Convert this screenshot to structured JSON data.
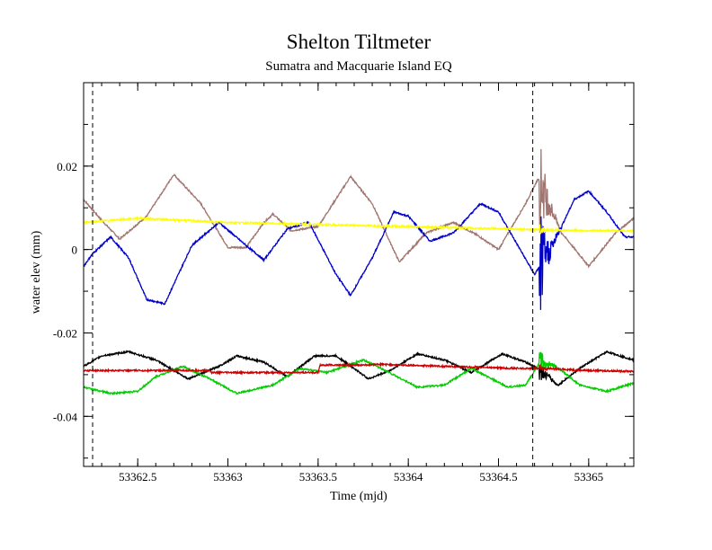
{
  "chart_data": {
    "type": "line",
    "title": "Shelton Tiltmeter",
    "subtitle": "Sumatra and  Macquarie Island EQ",
    "xlabel": "Time (mjd)",
    "ylabel": "water elev (mm)",
    "xlim": [
      53362.2,
      53365.25
    ],
    "ylim": [
      -0.052,
      0.04
    ],
    "xticks": [
      53362.5,
      53363,
      53363.5,
      53364,
      53364.5,
      53365
    ],
    "xtick_labels": [
      "53362.5",
      "53363",
      "53363.5",
      "53364",
      "53364.5",
      "53365"
    ],
    "yticks": [
      -0.04,
      -0.02,
      0,
      0.02
    ],
    "ytick_labels": [
      "-0.04",
      "-0.02",
      "0",
      "0.02"
    ],
    "grid": false,
    "vlines": [
      53362.25,
      53364.69
    ],
    "event_time": 53364.73,
    "series": [
      {
        "color": "#a1756f",
        "values": [
          [
            53362.2,
            0.012
          ],
          [
            53362.3,
            0.007
          ],
          [
            53362.4,
            0.0025
          ],
          [
            53362.55,
            0.008
          ],
          [
            53362.7,
            0.018
          ],
          [
            53362.85,
            0.011
          ],
          [
            53363.0,
            0.0005
          ],
          [
            53363.1,
            0.0005
          ],
          [
            53363.2,
            0.0065
          ],
          [
            53363.25,
            0.0085
          ],
          [
            53363.35,
            0.0045
          ],
          [
            53363.5,
            0.0055
          ],
          [
            53363.68,
            0.0175
          ],
          [
            53363.8,
            0.011
          ],
          [
            53363.95,
            -0.003
          ],
          [
            53364.1,
            0.004
          ],
          [
            53364.25,
            0.0065
          ],
          [
            53364.38,
            0.0035
          ],
          [
            53364.5,
            0.0
          ],
          [
            53364.65,
            0.011
          ],
          [
            53364.72,
            0.017
          ],
          [
            53364.85,
            0.004
          ],
          [
            53365.0,
            -0.004
          ],
          [
            53365.15,
            0.004
          ],
          [
            53365.25,
            0.0075
          ]
        ]
      },
      {
        "color": "#0000cc",
        "values": [
          [
            53362.2,
            -0.004
          ],
          [
            53362.25,
            -0.001
          ],
          [
            53362.35,
            0.003
          ],
          [
            53362.45,
            -0.002
          ],
          [
            53362.55,
            -0.012
          ],
          [
            53362.65,
            -0.013
          ],
          [
            53362.8,
            0.001
          ],
          [
            53362.95,
            0.0065
          ],
          [
            53363.1,
            0.001
          ],
          [
            53363.2,
            -0.0025
          ],
          [
            53363.33,
            0.005
          ],
          [
            53363.45,
            0.0065
          ],
          [
            53363.6,
            -0.006
          ],
          [
            53363.68,
            -0.011
          ],
          [
            53363.8,
            -0.002
          ],
          [
            53363.92,
            0.009
          ],
          [
            53364.0,
            0.008
          ],
          [
            53364.12,
            0.002
          ],
          [
            53364.25,
            0.004
          ],
          [
            53364.4,
            0.011
          ],
          [
            53364.5,
            0.009
          ],
          [
            53364.62,
            0.0
          ],
          [
            53364.7,
            -0.006
          ],
          [
            53364.8,
            0.001
          ],
          [
            53364.92,
            0.012
          ],
          [
            53365.0,
            0.014
          ],
          [
            53365.1,
            0.009
          ],
          [
            53365.2,
            0.003
          ],
          [
            53365.25,
            0.003
          ]
        ]
      },
      {
        "color": "#ffff00",
        "values": [
          [
            53362.2,
            0.0065
          ],
          [
            53362.5,
            0.0075
          ],
          [
            53363.0,
            0.0065
          ],
          [
            53363.5,
            0.006
          ],
          [
            53364.0,
            0.0055
          ],
          [
            53364.5,
            0.005
          ],
          [
            53365.0,
            0.0045
          ],
          [
            53365.25,
            0.0045
          ]
        ]
      },
      {
        "color": "#000000",
        "values": [
          [
            53362.2,
            -0.028
          ],
          [
            53362.3,
            -0.0255
          ],
          [
            53362.45,
            -0.0245
          ],
          [
            53362.6,
            -0.0265
          ],
          [
            53362.78,
            -0.031
          ],
          [
            53362.95,
            -0.028
          ],
          [
            53363.05,
            -0.0255
          ],
          [
            53363.2,
            -0.027
          ],
          [
            53363.33,
            -0.0305
          ],
          [
            53363.48,
            -0.0255
          ],
          [
            53363.6,
            -0.0255
          ],
          [
            53363.78,
            -0.031
          ],
          [
            53363.9,
            -0.029
          ],
          [
            53364.05,
            -0.025
          ],
          [
            53364.2,
            -0.0265
          ],
          [
            53364.35,
            -0.0295
          ],
          [
            53364.52,
            -0.025
          ],
          [
            53364.65,
            -0.027
          ],
          [
            53364.72,
            -0.0285
          ],
          [
            53364.83,
            -0.0325
          ],
          [
            53364.95,
            -0.0285
          ],
          [
            53365.1,
            -0.0245
          ],
          [
            53365.25,
            -0.0265
          ]
        ]
      },
      {
        "color": "#00cc00",
        "values": [
          [
            53362.2,
            -0.033
          ],
          [
            53362.35,
            -0.0345
          ],
          [
            53362.5,
            -0.034
          ],
          [
            53362.6,
            -0.0305
          ],
          [
            53362.75,
            -0.028
          ],
          [
            53362.9,
            -0.031
          ],
          [
            53363.05,
            -0.0345
          ],
          [
            53363.25,
            -0.0325
          ],
          [
            53363.4,
            -0.0285
          ],
          [
            53363.55,
            -0.0295
          ],
          [
            53363.75,
            -0.0265
          ],
          [
            53363.85,
            -0.0285
          ],
          [
            53364.05,
            -0.033
          ],
          [
            53364.2,
            -0.0325
          ],
          [
            53364.35,
            -0.0285
          ],
          [
            53364.55,
            -0.033
          ],
          [
            53364.65,
            -0.0325
          ],
          [
            53364.73,
            -0.027
          ],
          [
            53364.82,
            -0.028
          ],
          [
            53364.95,
            -0.0325
          ],
          [
            53365.1,
            -0.034
          ],
          [
            53365.25,
            -0.032
          ]
        ]
      },
      {
        "color": "#cc0000",
        "values": [
          [
            53362.2,
            -0.029
          ],
          [
            53362.9,
            -0.029
          ],
          [
            53362.91,
            -0.0295
          ],
          [
            53363.5,
            -0.0295
          ],
          [
            53363.51,
            -0.0277
          ],
          [
            53363.8,
            -0.0277
          ],
          [
            53363.81,
            -0.0275
          ],
          [
            53364.6,
            -0.0285
          ],
          [
            53364.75,
            -0.0285
          ],
          [
            53365.0,
            -0.029
          ],
          [
            53365.25,
            -0.0292
          ]
        ]
      }
    ]
  }
}
